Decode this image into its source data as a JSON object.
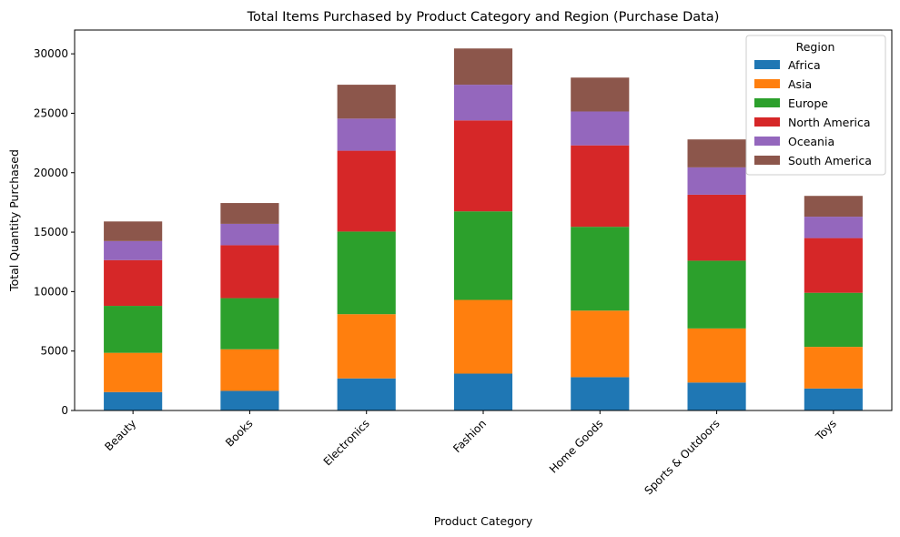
{
  "chart_data": {
    "type": "bar",
    "stacked": true,
    "title": "Total Items Purchased by Product Category and Region (Purchase Data)",
    "xlabel": "Product Category",
    "ylabel": "Total Quantity Purchased",
    "ylim": [
      0,
      32000
    ],
    "yticks": [
      "0",
      "5000",
      "10000",
      "15000",
      "20000",
      "25000",
      "30000"
    ],
    "grid": false,
    "legend_title": "Region",
    "legend_position": "top-right",
    "categories": [
      "Beauty",
      "Books",
      "Electronics",
      "Fashion",
      "Home Goods",
      "Sports & Outdoors",
      "Toys"
    ],
    "series": [
      {
        "name": "Africa",
        "color": "#1f77b4",
        "values": [
          1550,
          1650,
          2700,
          3100,
          2800,
          2350,
          1850
        ]
      },
      {
        "name": "Asia",
        "color": "#ff7f0e",
        "values": [
          3300,
          3500,
          5400,
          6200,
          5600,
          4550,
          3500
        ]
      },
      {
        "name": "Europe",
        "color": "#2ca02c",
        "values": [
          3950,
          4300,
          6950,
          7450,
          7050,
          5700,
          4550
        ]
      },
      {
        "name": "North America",
        "color": "#d62728",
        "values": [
          3850,
          4450,
          6800,
          7650,
          6850,
          5550,
          4600
        ]
      },
      {
        "name": "Oceania",
        "color": "#9467bd",
        "values": [
          1600,
          1800,
          2700,
          3000,
          2850,
          2300,
          1800
        ]
      },
      {
        "name": "South America",
        "color": "#8c564b",
        "values": [
          1650,
          1750,
          2850,
          3050,
          2850,
          2350,
          1750
        ]
      }
    ]
  }
}
